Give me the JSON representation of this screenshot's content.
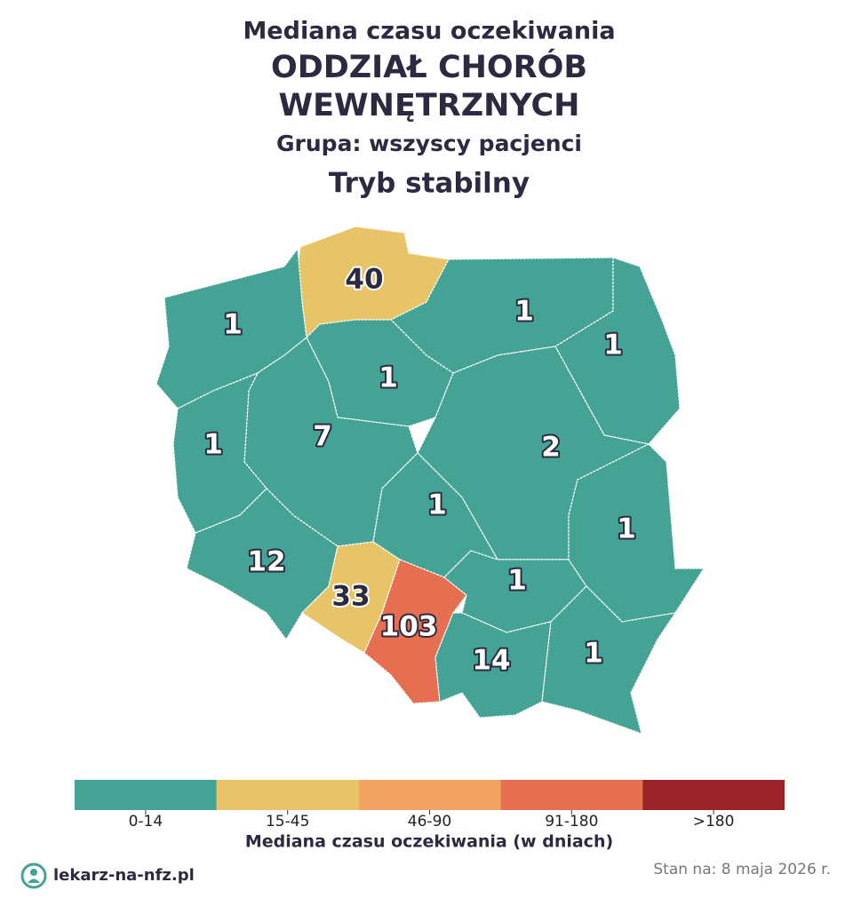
{
  "title": "Mediana czasu oczekiwania",
  "title_lines": [
    "ODDZIAŁ CHORÓB",
    "WEWNĘTRZNYCH"
  ],
  "subtitle": "Grupa: wszyscy pacjenci",
  "mode": "Tryb stabilny",
  "regions": [
    {
      "value": 40,
      "color": "#e8c468"
    },
    {
      "value": 1,
      "color": "#45a396"
    },
    {
      "value": 1,
      "color": "#45a396"
    },
    {
      "value": 1,
      "color": "#45a396"
    },
    {
      "value": 1,
      "color": "#45a396"
    },
    {
      "value": 7,
      "color": "#45a396"
    },
    {
      "value": 1,
      "color": "#45a396"
    },
    {
      "value": 2,
      "color": "#45a396"
    },
    {
      "value": 1,
      "color": "#45a396"
    },
    {
      "value": 12,
      "color": "#45a396"
    },
    {
      "value": 33,
      "color": "#e8c468"
    },
    {
      "value": 103,
      "color": "#e76f51"
    },
    {
      "value": 1,
      "color": "#45a396"
    },
    {
      "value": 1,
      "color": "#45a396"
    },
    {
      "value": 14,
      "color": "#45a396"
    },
    {
      "value": 1,
      "color": "#45a396"
    }
  ],
  "legend": {
    "title": "Mediana czasu oczekiwania (w dniach)",
    "items": [
      {
        "label": "0-14",
        "color": "#45a396"
      },
      {
        "label": "15-45",
        "color": "#e8c468"
      },
      {
        "label": "46-90",
        "color": "#f2a261"
      },
      {
        "label": "91-180",
        "color": "#e76f51"
      },
      {
        "label": ">180",
        "color": "#9b2226"
      }
    ]
  },
  "footer": {
    "brand": "lekarz-na-nfz.pl",
    "date": "Stan na: 8 maja 2026 r."
  }
}
